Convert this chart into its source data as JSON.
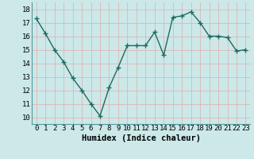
{
  "x": [
    0,
    1,
    2,
    3,
    4,
    5,
    6,
    7,
    8,
    9,
    10,
    11,
    12,
    13,
    14,
    15,
    16,
    17,
    18,
    19,
    20,
    21,
    22,
    23
  ],
  "y": [
    17.3,
    16.2,
    15.0,
    14.1,
    12.9,
    12.0,
    11.0,
    10.1,
    12.2,
    13.7,
    15.3,
    15.3,
    15.3,
    16.3,
    14.6,
    17.4,
    17.5,
    17.8,
    17.0,
    16.0,
    16.0,
    15.9,
    14.9,
    15.0
  ],
  "xlabel": "Humidex (Indice chaleur)",
  "xlim": [
    -0.5,
    23.5
  ],
  "ylim": [
    9.5,
    18.5
  ],
  "yticks": [
    10,
    11,
    12,
    13,
    14,
    15,
    16,
    17,
    18
  ],
  "xticks": [
    0,
    1,
    2,
    3,
    4,
    5,
    6,
    7,
    8,
    9,
    10,
    11,
    12,
    13,
    14,
    15,
    16,
    17,
    18,
    19,
    20,
    21,
    22,
    23
  ],
  "line_color": "#1a6b60",
  "marker": "+",
  "marker_size": 5,
  "bg_color": "#cce8e8",
  "grid_color": "#dbb8b8",
  "xlabel_fontsize": 7.5,
  "tick_fontsize": 6.5
}
